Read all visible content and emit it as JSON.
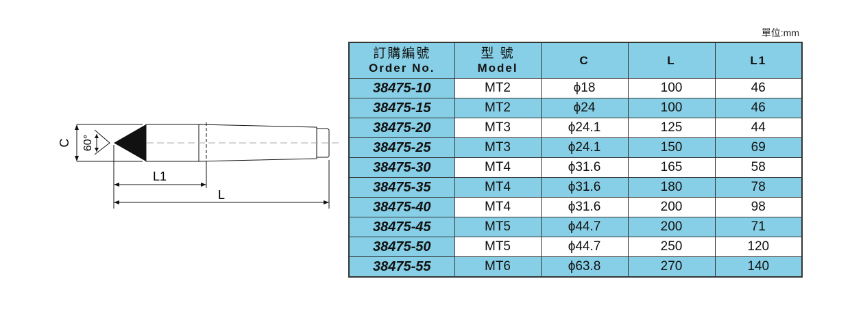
{
  "unit_label": "單位:mm",
  "colors": {
    "header_bg": "#87cfe6",
    "row_alt_bg": "#87cfe6",
    "border": "#333333"
  },
  "drawing": {
    "dim_c": "C",
    "angle": "60°",
    "dim_l1": "L1",
    "dim_l": "L"
  },
  "table": {
    "headers": [
      {
        "zh": "訂購編號",
        "en": "Order No."
      },
      {
        "zh": "型 號",
        "en": "Model"
      },
      {
        "zh": "",
        "en": "C"
      },
      {
        "zh": "",
        "en": "L"
      },
      {
        "zh": "",
        "en": "L1"
      }
    ],
    "rows": [
      [
        "38475-10",
        "MT2",
        "ϕ18",
        "100",
        "46"
      ],
      [
        "38475-15",
        "MT2",
        "ϕ24",
        "100",
        "46"
      ],
      [
        "38475-20",
        "MT3",
        "ϕ24.1",
        "125",
        "44"
      ],
      [
        "38475-25",
        "MT3",
        "ϕ24.1",
        "150",
        "69"
      ],
      [
        "38475-30",
        "MT4",
        "ϕ31.6",
        "165",
        "58"
      ],
      [
        "38475-35",
        "MT4",
        "ϕ31.6",
        "180",
        "78"
      ],
      [
        "38475-40",
        "MT4",
        "ϕ31.6",
        "200",
        "98"
      ],
      [
        "38475-45",
        "MT5",
        "ϕ44.7",
        "200",
        "71"
      ],
      [
        "38475-50",
        "MT5",
        "ϕ44.7",
        "250",
        "120"
      ],
      [
        "38475-55",
        "MT6",
        "ϕ63.8",
        "270",
        "140"
      ]
    ]
  }
}
